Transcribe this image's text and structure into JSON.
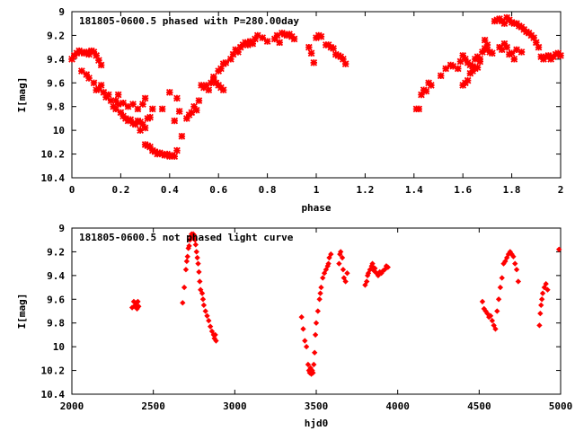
{
  "chart_data": [
    {
      "type": "scatter",
      "title": "181805-0600.5 phased with P=280.00day",
      "xlabel": "phase",
      "ylabel": "I[mag]",
      "xlim": [
        0,
        2
      ],
      "ylim": [
        10.4,
        9
      ],
      "y_inverted": true,
      "x_ticks": [
        0,
        0.2,
        0.4,
        0.6,
        0.8,
        1,
        1.2,
        1.4,
        1.6,
        1.8,
        2
      ],
      "x_tick_labels": [
        "0",
        "0.2",
        "0.4",
        "0.6",
        "0.8",
        "1",
        "1.2",
        "1.4",
        "1.6",
        "1.8",
        "2"
      ],
      "y_ticks": [
        9,
        9.2,
        9.4,
        9.6,
        9.8,
        10,
        10.2,
        10.4
      ],
      "y_tick_labels": [
        "9",
        "9.2",
        "9.4",
        "9.6",
        "9.8",
        "10",
        "10.2",
        "10.4"
      ],
      "marker": "cross",
      "color": "#ff0000",
      "points": [
        [
          0.0,
          9.4
        ],
        [
          0.01,
          9.37
        ],
        [
          0.02,
          9.35
        ],
        [
          0.03,
          9.33
        ],
        [
          0.04,
          9.34
        ],
        [
          0.05,
          9.35
        ],
        [
          0.06,
          9.34
        ],
        [
          0.07,
          9.36
        ],
        [
          0.08,
          9.33
        ],
        [
          0.09,
          9.34
        ],
        [
          0.1,
          9.37
        ],
        [
          0.11,
          9.41
        ],
        [
          0.12,
          9.45
        ],
        [
          0.04,
          9.5
        ],
        [
          0.06,
          9.53
        ],
        [
          0.07,
          9.56
        ],
        [
          0.09,
          9.6
        ],
        [
          0.1,
          9.66
        ],
        [
          0.11,
          9.65
        ],
        [
          0.12,
          9.62
        ],
        [
          0.13,
          9.68
        ],
        [
          0.14,
          9.72
        ],
        [
          0.15,
          9.7
        ],
        [
          0.16,
          9.75
        ],
        [
          0.17,
          9.8
        ],
        [
          0.18,
          9.82
        ],
        [
          0.19,
          9.78
        ],
        [
          0.2,
          9.85
        ],
        [
          0.21,
          9.88
        ],
        [
          0.22,
          9.9
        ],
        [
          0.23,
          9.92
        ],
        [
          0.24,
          9.91
        ],
        [
          0.25,
          9.94
        ],
        [
          0.26,
          9.95
        ],
        [
          0.27,
          9.92
        ],
        [
          0.28,
          9.93
        ],
        [
          0.29,
          9.95
        ],
        [
          0.3,
          9.98
        ],
        [
          0.31,
          9.9
        ],
        [
          0.32,
          9.89
        ],
        [
          0.28,
          10.0
        ],
        [
          0.3,
          10.12
        ],
        [
          0.31,
          10.13
        ],
        [
          0.32,
          10.14
        ],
        [
          0.33,
          10.17
        ],
        [
          0.34,
          10.18
        ],
        [
          0.35,
          10.2
        ],
        [
          0.36,
          10.19
        ],
        [
          0.37,
          10.2
        ],
        [
          0.38,
          10.21
        ],
        [
          0.39,
          10.2
        ],
        [
          0.4,
          10.22
        ],
        [
          0.41,
          10.21
        ],
        [
          0.42,
          10.22
        ],
        [
          0.43,
          10.17
        ],
        [
          0.18,
          9.75
        ],
        [
          0.19,
          9.7
        ],
        [
          0.21,
          9.77
        ],
        [
          0.23,
          9.8
        ],
        [
          0.25,
          9.78
        ],
        [
          0.27,
          9.82
        ],
        [
          0.29,
          9.78
        ],
        [
          0.3,
          9.73
        ],
        [
          0.33,
          9.82
        ],
        [
          0.37,
          9.82
        ],
        [
          0.4,
          9.68
        ],
        [
          0.43,
          9.73
        ],
        [
          0.42,
          9.92
        ],
        [
          0.44,
          9.84
        ],
        [
          0.45,
          10.05
        ],
        [
          0.47,
          9.9
        ],
        [
          0.48,
          9.87
        ],
        [
          0.49,
          9.85
        ],
        [
          0.5,
          9.8
        ],
        [
          0.51,
          9.83
        ],
        [
          0.52,
          9.75
        ],
        [
          0.53,
          9.62
        ],
        [
          0.54,
          9.64
        ],
        [
          0.55,
          9.62
        ],
        [
          0.56,
          9.66
        ],
        [
          0.57,
          9.6
        ],
        [
          0.58,
          9.58
        ],
        [
          0.59,
          9.6
        ],
        [
          0.6,
          9.62
        ],
        [
          0.61,
          9.64
        ],
        [
          0.62,
          9.66
        ],
        [
          0.58,
          9.55
        ],
        [
          0.6,
          9.5
        ],
        [
          0.61,
          9.48
        ],
        [
          0.62,
          9.44
        ],
        [
          0.63,
          9.43
        ],
        [
          0.65,
          9.4
        ],
        [
          0.66,
          9.36
        ],
        [
          0.67,
          9.32
        ],
        [
          0.68,
          9.34
        ],
        [
          0.69,
          9.3
        ],
        [
          0.7,
          9.28
        ],
        [
          0.71,
          9.26
        ],
        [
          0.72,
          9.28
        ],
        [
          0.73,
          9.25
        ],
        [
          0.74,
          9.27
        ],
        [
          0.75,
          9.23
        ],
        [
          0.76,
          9.2
        ],
        [
          0.78,
          9.22
        ],
        [
          0.8,
          9.25
        ],
        [
          0.83,
          9.23
        ],
        [
          0.84,
          9.2
        ],
        [
          0.85,
          9.26
        ],
        [
          0.86,
          9.18
        ],
        [
          0.87,
          9.19
        ],
        [
          0.88,
          9.2
        ],
        [
          0.89,
          9.19
        ],
        [
          0.9,
          9.21
        ],
        [
          0.91,
          9.23
        ],
        [
          0.97,
          9.3
        ],
        [
          0.98,
          9.35
        ],
        [
          0.99,
          9.43
        ],
        [
          1.0,
          9.22
        ],
        [
          1.01,
          9.2
        ],
        [
          1.02,
          9.21
        ],
        [
          1.04,
          9.28
        ],
        [
          1.05,
          9.28
        ],
        [
          1.06,
          9.3
        ],
        [
          1.07,
          9.31
        ],
        [
          1.08,
          9.36
        ],
        [
          1.09,
          9.37
        ],
        [
          1.1,
          9.38
        ],
        [
          1.11,
          9.4
        ],
        [
          1.12,
          9.44
        ],
        [
          1.41,
          9.82
        ],
        [
          1.42,
          9.82
        ],
        [
          1.43,
          9.7
        ],
        [
          1.44,
          9.66
        ],
        [
          1.45,
          9.67
        ],
        [
          1.46,
          9.6
        ],
        [
          1.47,
          9.62
        ],
        [
          1.51,
          9.54
        ],
        [
          1.53,
          9.48
        ],
        [
          1.55,
          9.45
        ],
        [
          1.56,
          9.46
        ],
        [
          1.58,
          9.48
        ],
        [
          1.59,
          9.42
        ],
        [
          1.6,
          9.37
        ],
        [
          1.61,
          9.4
        ],
        [
          1.62,
          9.43
        ],
        [
          1.63,
          9.45
        ],
        [
          1.64,
          9.46
        ],
        [
          1.65,
          9.4
        ],
        [
          1.66,
          9.38
        ],
        [
          1.67,
          9.4
        ],
        [
          1.68,
          9.34
        ],
        [
          1.69,
          9.31
        ],
        [
          1.7,
          9.32
        ],
        [
          1.71,
          9.34
        ],
        [
          1.72,
          9.35
        ],
        [
          1.6,
          9.62
        ],
        [
          1.61,
          9.6
        ],
        [
          1.62,
          9.58
        ],
        [
          1.63,
          9.52
        ],
        [
          1.64,
          9.5
        ],
        [
          1.65,
          9.48
        ],
        [
          1.66,
          9.47
        ],
        [
          1.67,
          9.42
        ],
        [
          1.69,
          9.24
        ],
        [
          1.7,
          9.28
        ],
        [
          1.73,
          9.08
        ],
        [
          1.74,
          9.07
        ],
        [
          1.75,
          9.06
        ],
        [
          1.76,
          9.08
        ],
        [
          1.77,
          9.1
        ],
        [
          1.78,
          9.05
        ],
        [
          1.79,
          9.07
        ],
        [
          1.8,
          9.09
        ],
        [
          1.81,
          9.1
        ],
        [
          1.82,
          9.1
        ],
        [
          1.83,
          9.12
        ],
        [
          1.84,
          9.13
        ],
        [
          1.85,
          9.15
        ],
        [
          1.86,
          9.17
        ],
        [
          1.87,
          9.18
        ],
        [
          1.88,
          9.2
        ],
        [
          1.89,
          9.22
        ],
        [
          1.9,
          9.26
        ],
        [
          1.75,
          9.3
        ],
        [
          1.76,
          9.32
        ],
        [
          1.77,
          9.27
        ],
        [
          1.78,
          9.3
        ],
        [
          1.79,
          9.36
        ],
        [
          1.8,
          9.35
        ],
        [
          1.81,
          9.4
        ],
        [
          1.82,
          9.32
        ],
        [
          1.84,
          9.34
        ],
        [
          1.91,
          9.3
        ],
        [
          1.92,
          9.38
        ],
        [
          1.93,
          9.4
        ],
        [
          1.94,
          9.38
        ],
        [
          1.95,
          9.37
        ],
        [
          1.96,
          9.4
        ],
        [
          1.97,
          9.38
        ],
        [
          1.98,
          9.36
        ],
        [
          1.99,
          9.35
        ],
        [
          2.0,
          9.37
        ]
      ]
    },
    {
      "type": "scatter",
      "title": "181805-0600.5 not phased light curve",
      "xlabel": "hjd0",
      "ylabel": "I[mag]",
      "xlim": [
        2000,
        5000
      ],
      "ylim": [
        10.4,
        9
      ],
      "y_inverted": true,
      "x_ticks": [
        2000,
        2500,
        3000,
        3500,
        4000,
        4500,
        5000
      ],
      "x_tick_labels": [
        "2000",
        "2500",
        "3000",
        "3500",
        "4000",
        "4500",
        "5000"
      ],
      "y_ticks": [
        9,
        9.2,
        9.4,
        9.6,
        9.8,
        10,
        10.2,
        10.4
      ],
      "y_tick_labels": [
        "9",
        "9.2",
        "9.4",
        "9.6",
        "9.8",
        "10",
        "10.2",
        "10.4"
      ],
      "marker": "diamond",
      "color": "#ff0000",
      "points": [
        [
          2370,
          9.67
        ],
        [
          2380,
          9.62
        ],
        [
          2385,
          9.66
        ],
        [
          2390,
          9.65
        ],
        [
          2395,
          9.63
        ],
        [
          2400,
          9.68
        ],
        [
          2405,
          9.62
        ],
        [
          2410,
          9.66
        ],
        [
          2680,
          9.63
        ],
        [
          2690,
          9.5
        ],
        [
          2700,
          9.35
        ],
        [
          2705,
          9.28
        ],
        [
          2710,
          9.24
        ],
        [
          2715,
          9.17
        ],
        [
          2720,
          9.15
        ],
        [
          2725,
          9.1
        ],
        [
          2730,
          9.07
        ],
        [
          2735,
          9.05
        ],
        [
          2740,
          9.06
        ],
        [
          2745,
          9.05
        ],
        [
          2748,
          9.08
        ],
        [
          2750,
          9.06
        ],
        [
          2753,
          9.09
        ],
        [
          2756,
          9.1
        ],
        [
          2760,
          9.14
        ],
        [
          2765,
          9.2
        ],
        [
          2770,
          9.25
        ],
        [
          2775,
          9.3
        ],
        [
          2780,
          9.37
        ],
        [
          2785,
          9.45
        ],
        [
          2790,
          9.52
        ],
        [
          2800,
          9.55
        ],
        [
          2805,
          9.6
        ],
        [
          2810,
          9.65
        ],
        [
          2820,
          9.7
        ],
        [
          2830,
          9.74
        ],
        [
          2840,
          9.78
        ],
        [
          2850,
          9.83
        ],
        [
          2860,
          9.87
        ],
        [
          2870,
          9.9
        ],
        [
          2875,
          9.93
        ],
        [
          2880,
          9.9
        ],
        [
          2885,
          9.95
        ],
        [
          3410,
          9.75
        ],
        [
          3420,
          9.85
        ],
        [
          3430,
          9.95
        ],
        [
          3440,
          10.0
        ],
        [
          3450,
          10.15
        ],
        [
          3455,
          10.2
        ],
        [
          3460,
          10.22
        ],
        [
          3465,
          10.18
        ],
        [
          3470,
          10.23
        ],
        [
          3475,
          10.2
        ],
        [
          3480,
          10.22
        ],
        [
          3485,
          10.15
        ],
        [
          3490,
          10.05
        ],
        [
          3495,
          9.9
        ],
        [
          3500,
          9.8
        ],
        [
          3510,
          9.7
        ],
        [
          3520,
          9.6
        ],
        [
          3525,
          9.55
        ],
        [
          3530,
          9.5
        ],
        [
          3540,
          9.42
        ],
        [
          3550,
          9.38
        ],
        [
          3560,
          9.35
        ],
        [
          3570,
          9.32
        ],
        [
          3575,
          9.3
        ],
        [
          3580,
          9.25
        ],
        [
          3590,
          9.22
        ],
        [
          3640,
          9.3
        ],
        [
          3645,
          9.22
        ],
        [
          3650,
          9.2
        ],
        [
          3660,
          9.25
        ],
        [
          3665,
          9.35
        ],
        [
          3670,
          9.42
        ],
        [
          3680,
          9.45
        ],
        [
          3690,
          9.38
        ],
        [
          3800,
          9.48
        ],
        [
          3810,
          9.45
        ],
        [
          3815,
          9.4
        ],
        [
          3820,
          9.38
        ],
        [
          3830,
          9.35
        ],
        [
          3840,
          9.32
        ],
        [
          3845,
          9.3
        ],
        [
          3850,
          9.33
        ],
        [
          3855,
          9.36
        ],
        [
          3860,
          9.34
        ],
        [
          3870,
          9.38
        ],
        [
          3880,
          9.4
        ],
        [
          3890,
          9.37
        ],
        [
          3900,
          9.38
        ],
        [
          3910,
          9.36
        ],
        [
          3920,
          9.35
        ],
        [
          3930,
          9.32
        ],
        [
          3940,
          9.33
        ],
        [
          4520,
          9.62
        ],
        [
          4530,
          9.68
        ],
        [
          4540,
          9.7
        ],
        [
          4550,
          9.72
        ],
        [
          4560,
          9.75
        ],
        [
          4570,
          9.74
        ],
        [
          4580,
          9.78
        ],
        [
          4590,
          9.82
        ],
        [
          4600,
          9.85
        ],
        [
          4610,
          9.7
        ],
        [
          4620,
          9.6
        ],
        [
          4630,
          9.5
        ],
        [
          4640,
          9.42
        ],
        [
          4650,
          9.3
        ],
        [
          4660,
          9.28
        ],
        [
          4670,
          9.25
        ],
        [
          4680,
          9.22
        ],
        [
          4690,
          9.2
        ],
        [
          4700,
          9.22
        ],
        [
          4710,
          9.24
        ],
        [
          4720,
          9.3
        ],
        [
          4730,
          9.35
        ],
        [
          4740,
          9.45
        ],
        [
          4870,
          9.82
        ],
        [
          4875,
          9.72
        ],
        [
          4880,
          9.65
        ],
        [
          4885,
          9.6
        ],
        [
          4890,
          9.55
        ],
        [
          4900,
          9.5
        ],
        [
          4910,
          9.47
        ],
        [
          4920,
          9.52
        ],
        [
          4990,
          9.18
        ]
      ]
    }
  ]
}
